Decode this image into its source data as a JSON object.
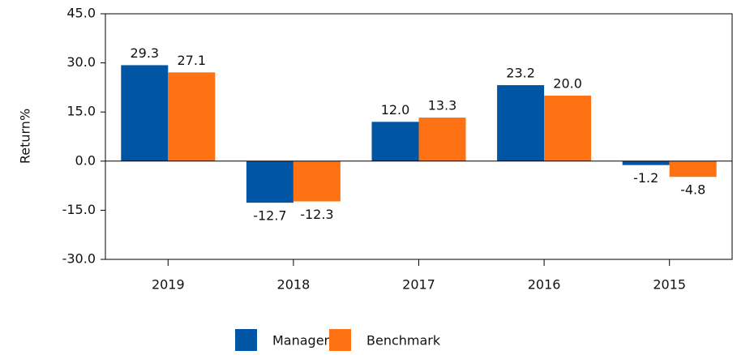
{
  "chart_data": {
    "type": "bar",
    "y_label": "Return%",
    "categories": [
      "2019",
      "2018",
      "2017",
      "2016",
      "2015"
    ],
    "series": [
      {
        "name": "Manager",
        "color": "#0055a5",
        "values": [
          29.3,
          -12.7,
          12.0,
          23.2,
          -1.2
        ],
        "value_labels": [
          "29.3",
          "-12.7",
          "12.0",
          "23.2",
          "-1.2"
        ]
      },
      {
        "name": "Benchmark",
        "color": "#ff7214",
        "values": [
          27.1,
          -12.3,
          13.3,
          20.0,
          -4.8
        ],
        "value_labels": [
          "27.1",
          "-12.3",
          "13.3",
          "20.0",
          "-4.8"
        ]
      }
    ],
    "ylim": [
      -30,
      45
    ],
    "yticks": [
      {
        "value": -30,
        "label": "-30.0"
      },
      {
        "value": -15,
        "label": "-15.0"
      },
      {
        "value": 0,
        "label": "0.0"
      },
      {
        "value": 15,
        "label": "15.0"
      },
      {
        "value": 30,
        "label": "30.0"
      },
      {
        "value": 45,
        "label": "45.0"
      }
    ],
    "legend": "bottom"
  }
}
